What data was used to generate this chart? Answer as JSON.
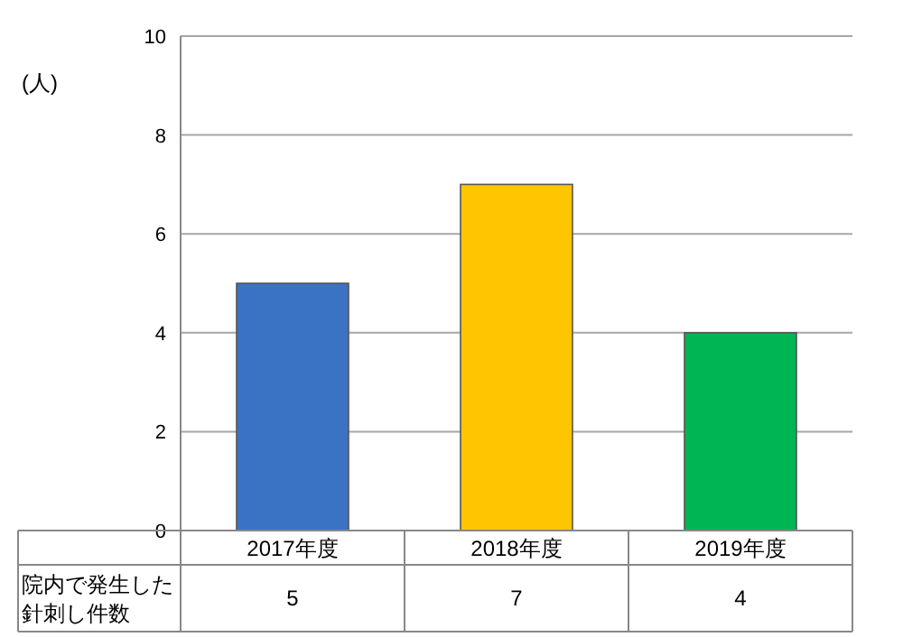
{
  "chart_data": {
    "type": "bar",
    "ylabel": "(人)",
    "categories": [
      "2017年度",
      "2018年度",
      "2019年度"
    ],
    "series": [
      {
        "name": "院内で発生した針刺し件数",
        "colors": [
          "#3b73c4",
          "#ffc600",
          "#00b553"
        ],
        "values": [
          5,
          7,
          4
        ]
      }
    ],
    "ylim": [
      0,
      10
    ],
    "yticks": [
      0,
      2,
      4,
      6,
      8,
      10
    ],
    "grid": "y",
    "data_labels": true
  }
}
